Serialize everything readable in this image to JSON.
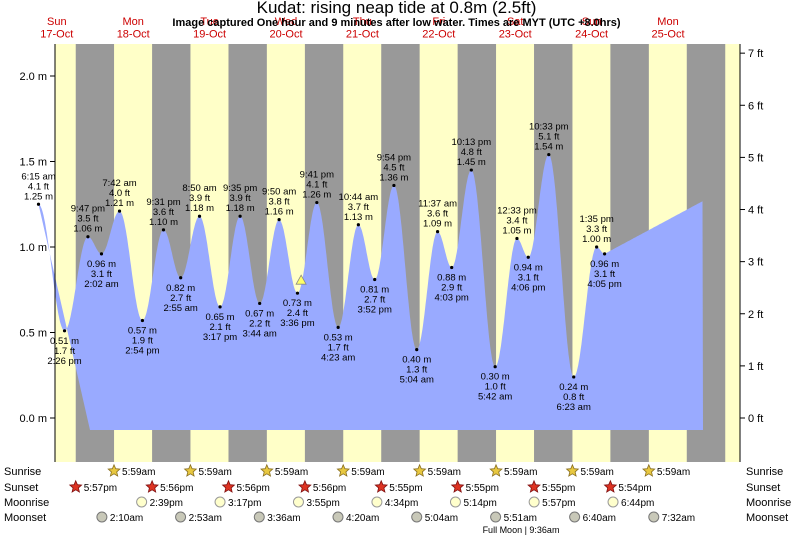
{
  "title": "Kudat: rising  neap tide at 0.8m (2.5ft)",
  "subtitle": "Image captured One hour and 9 minutes after low water. Times are MYT (UTC +8.0hrs)",
  "colors": {
    "day": "#ffffc8",
    "night": "#999999",
    "tide": "#99aaff",
    "day_label": "#cc0000",
    "marker": "#ffff66"
  },
  "days": [
    {
      "name": "Sun",
      "date": "17-Oct"
    },
    {
      "name": "Mon",
      "date": "18-Oct"
    },
    {
      "name": "Tue",
      "date": "19-Oct"
    },
    {
      "name": "Wed",
      "date": "20-Oct"
    },
    {
      "name": "Thu",
      "date": "21-Oct"
    },
    {
      "name": "Fri",
      "date": "22-Oct"
    },
    {
      "name": "Sat",
      "date": "23-Oct"
    },
    {
      "name": "Sun",
      "date": "24-Oct"
    },
    {
      "name": "Mon",
      "date": "25-Oct"
    }
  ],
  "chart_data": {
    "type": "area",
    "x_unit": "hours since 00:00 17-Oct (MYT)",
    "ylim_m": [
      -0.08,
      2.15
    ],
    "y_ticks_m": [
      "0.0 m",
      "0.5 m",
      "1.0 m",
      "1.5 m",
      "2.0 m"
    ],
    "y_ticks_ft": [
      "0 ft",
      "1 ft",
      "2 ft",
      "3 ft",
      "4 ft",
      "5 ft",
      "6 ft",
      "7 ft"
    ],
    "extremes": [
      {
        "m": 1.25,
        "time": "6:15 am",
        "ft": "4.1 ft",
        "h_label": "1.25 m",
        "type": "high"
      },
      {
        "m": 0.51,
        "time": "2:26 pm",
        "ft": "1.7 ft",
        "h_label": "0.51 m",
        "type": "low"
      },
      {
        "m": 1.06,
        "time": "9:47 pm",
        "ft": "3.5 ft",
        "h_label": "1.06 m",
        "type": "high"
      },
      {
        "m": 0.96,
        "time": "2:02 am",
        "ft": "3.1 ft",
        "h_label": "0.96 m",
        "type": "low"
      },
      {
        "m": 1.21,
        "time": "7:42 am",
        "ft": "4.0 ft",
        "h_label": "1.21 m",
        "type": "high"
      },
      {
        "m": 0.57,
        "time": "2:54 pm",
        "ft": "1.9 ft",
        "h_label": "0.57 m",
        "type": "low"
      },
      {
        "m": 1.1,
        "time": "9:31 pm",
        "ft": "3.6 ft",
        "h_label": "1.10 m",
        "type": "high"
      },
      {
        "m": 0.82,
        "time": "2:55 am",
        "ft": "2.7 ft",
        "h_label": "0.82 m",
        "type": "low"
      },
      {
        "m": 1.18,
        "time": "8:50 am",
        "ft": "3.9 ft",
        "h_label": "1.18 m",
        "type": "high"
      },
      {
        "m": 0.65,
        "time": "3:17 pm",
        "ft": "2.1 ft",
        "h_label": "0.65 m",
        "type": "low"
      },
      {
        "m": 1.18,
        "time": "9:35 pm",
        "ft": "3.9 ft",
        "h_label": "1.18 m",
        "type": "high"
      },
      {
        "m": 0.67,
        "time": "3:44 am",
        "ft": "2.2 ft",
        "h_label": "0.67 m",
        "type": "low"
      },
      {
        "m": 1.16,
        "time": "9:50 am",
        "ft": "3.8 ft",
        "h_label": "1.16 m",
        "type": "high"
      },
      {
        "m": 0.73,
        "time": "3:36 pm",
        "ft": "2.4 ft",
        "h_label": "0.73 m",
        "type": "low"
      },
      {
        "m": 1.26,
        "time": "9:41 pm",
        "ft": "4.1 ft",
        "h_label": "1.26 m",
        "type": "high"
      },
      {
        "m": 0.53,
        "time": "4:23 am",
        "ft": "1.7 ft",
        "h_label": "0.53 m",
        "type": "low"
      },
      {
        "m": 1.13,
        "time": "10:44 am",
        "ft": "3.7 ft",
        "h_label": "1.13 m",
        "type": "high"
      },
      {
        "m": 0.81,
        "time": "3:52 pm",
        "ft": "2.7 ft",
        "h_label": "0.81 m",
        "type": "low"
      },
      {
        "m": 1.36,
        "time": "9:54 pm",
        "ft": "4.5 ft",
        "h_label": "1.36 m",
        "type": "high"
      },
      {
        "m": 0.4,
        "time": "5:04 am",
        "ft": "1.3 ft",
        "h_label": "0.40 m",
        "type": "low"
      },
      {
        "m": 1.09,
        "time": "11:37 am",
        "ft": "3.6 ft",
        "h_label": "1.09 m",
        "type": "high"
      },
      {
        "m": 0.88,
        "time": "4:03 pm",
        "ft": "2.9 ft",
        "h_label": "0.88 m",
        "type": "low"
      },
      {
        "m": 1.45,
        "time": "10:13 pm",
        "ft": "4.8 ft",
        "h_label": "1.45 m",
        "type": "high"
      },
      {
        "m": 0.3,
        "time": "5:42 am",
        "ft": "1.0 ft",
        "h_label": "0.30 m",
        "type": "low"
      },
      {
        "m": 1.05,
        "time": "12:33 pm",
        "ft": "3.4 ft",
        "h_label": "1.05 m",
        "type": "high"
      },
      {
        "m": 0.94,
        "time": "4:06 pm",
        "ft": "3.1 ft",
        "h_label": "0.94 m",
        "type": "low"
      },
      {
        "m": 1.54,
        "time": "10:33 pm",
        "ft": "5.1 ft",
        "h_label": "1.54 m",
        "type": "high"
      },
      {
        "m": 0.24,
        "time": "6:23 am",
        "ft": "0.8 ft",
        "h_label": "0.24 m",
        "type": "low"
      },
      {
        "m": 1.0,
        "time": "1:35 pm",
        "ft": "3.3 ft",
        "h_label": "1.00 m",
        "type": "high"
      },
      {
        "m": 0.96,
        "time": "4:05 pm",
        "ft": "3.1 ft",
        "h_label": "0.96 m",
        "type": "low"
      }
    ],
    "current": {
      "m": 0.8
    }
  },
  "almanac": {
    "labels": {
      "sunrise": "Sunrise",
      "sunset": "Sunset",
      "moonrise": "Moonrise",
      "moonset": "Moonset"
    },
    "sunrise": [
      "5:59am",
      "5:59am",
      "5:59am",
      "5:59am",
      "5:59am",
      "5:59am",
      "5:59am",
      "5:59am"
    ],
    "sunset": [
      "5:57pm",
      "5:56pm",
      "5:56pm",
      "5:56pm",
      "5:55pm",
      "5:55pm",
      "5:55pm",
      "5:54pm"
    ],
    "moonrise": [
      "2:39pm",
      "3:17pm",
      "3:55pm",
      "4:34pm",
      "5:14pm",
      "5:57pm",
      "6:44pm"
    ],
    "moonset": [
      "2:10am",
      "2:53am",
      "3:36am",
      "4:20am",
      "5:04am",
      "5:51am",
      "6:40am",
      "7:32am"
    ],
    "full_moon": "Full Moon | 9:36am"
  }
}
